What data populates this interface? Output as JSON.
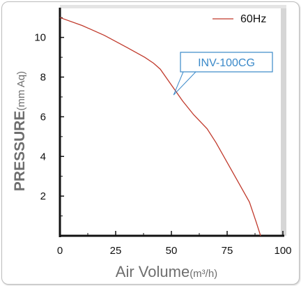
{
  "chart_data": {
    "type": "line",
    "xlabel": "Air Volume",
    "xunit": "(m³/h)",
    "ylabel": "PRESSURE",
    "yunit": "(mm Aq)",
    "xlim": [
      0,
      100
    ],
    "ylim": [
      0,
      11.5
    ],
    "x_ticks": [
      0,
      25,
      50,
      75,
      100
    ],
    "y_ticks": [
      2,
      4,
      6,
      8,
      10
    ],
    "grid": false,
    "legend_position": "top-right",
    "series": [
      {
        "name": "60Hz",
        "color": "#c0392b",
        "x": [
          0,
          10,
          20,
          30,
          38,
          42,
          45,
          50,
          55,
          60,
          66,
          70,
          75,
          80,
          85,
          88,
          90
        ],
        "y": [
          11.0,
          10.6,
          10.1,
          9.5,
          9.0,
          8.7,
          8.4,
          7.6,
          6.8,
          6.1,
          5.4,
          4.7,
          3.7,
          2.7,
          1.7,
          0.7,
          0.0
        ]
      }
    ],
    "annotations": [
      {
        "text": "INV-100CG",
        "color": "#3a89c9",
        "points_to_x": 51,
        "points_to_y": 7.1
      }
    ]
  }
}
